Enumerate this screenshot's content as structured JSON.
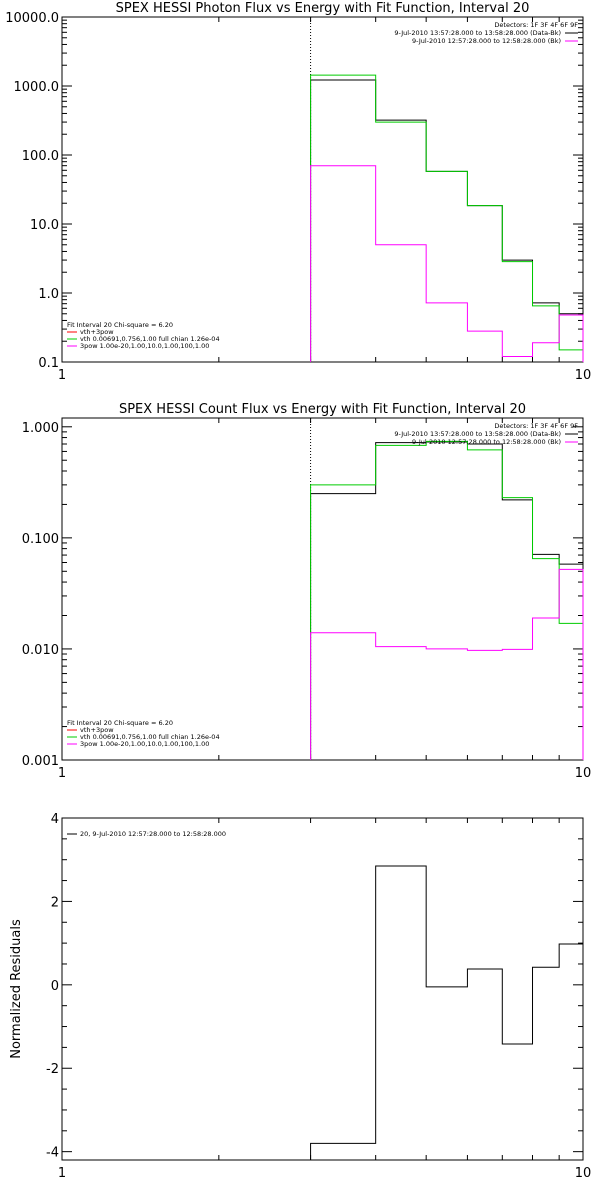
{
  "chart_data": [
    {
      "type": "line",
      "step": "histogram",
      "title": "SPEX HESSI Photon Flux vs Energy with Fit Function, Interval 20",
      "xscale": "log",
      "yscale": "log",
      "xlim": [
        1,
        10
      ],
      "ylim": [
        0.1,
        10000
      ],
      "xticks": [
        {
          "v": 1,
          "l": "1"
        },
        {
          "v": 10,
          "l": "10"
        }
      ],
      "yticks": [
        {
          "v": 0.1,
          "l": "0.1"
        },
        {
          "v": 1,
          "l": "1.0"
        },
        {
          "v": 10,
          "l": "10.0"
        },
        {
          "v": 100,
          "l": "100.0"
        },
        {
          "v": 1000,
          "l": "1000.0"
        },
        {
          "v": 10000,
          "l": "10000.0"
        }
      ],
      "vline": 3.0,
      "bin_edges": [
        3.0,
        4.0,
        5.0,
        6.0,
        7.0,
        8.0,
        9.0,
        10.0
      ],
      "series": [
        {
          "color": "#000000",
          "values": [
            1220,
            320,
            58,
            18.5,
            3.0,
            0.72,
            0.5
          ]
        },
        {
          "color": "#00cc00",
          "values": [
            1440,
            300,
            58,
            18.5,
            2.85,
            0.65,
            0.15
          ]
        },
        {
          "color": "#ff00ff",
          "values": [
            70,
            5.0,
            0.72,
            0.28,
            0.12,
            0.19,
            0.48
          ]
        }
      ],
      "detectors_text": "Detectors: 1F 3F 4F 6F 9F",
      "legend_right": [
        {
          "text": "9-Jul-2010 13:57:28.000 to 13:58:28.000 (Data-Bk)",
          "color": "#000000"
        },
        {
          "text": "9-Jul-2010 12:57:28.000 to 12:58:28.000 (Bk)",
          "color": "#ff00ff"
        }
      ],
      "legend_left": [
        {
          "text": "Fit Interval 20   Chi-square = 6.20",
          "color": null
        },
        {
          "text": "vth+3pow",
          "color": "#ff0000"
        },
        {
          "text": "vth 0.00691,0.756,1.00  full chian 1.26e-04",
          "color": "#00cc00"
        },
        {
          "text": "3pow 1.00e-20,1.00,10.0,1.00,100,1.00",
          "color": "#ff00ff"
        }
      ]
    },
    {
      "type": "line",
      "step": "histogram",
      "title": "SPEX HESSI Count Flux vs Energy with Fit Function, Interval 20",
      "xscale": "log",
      "yscale": "log",
      "xlim": [
        1,
        10
      ],
      "ylim": [
        0.001,
        1.2
      ],
      "xticks": [
        {
          "v": 1,
          "l": "1"
        },
        {
          "v": 10,
          "l": "10"
        }
      ],
      "yticks": [
        {
          "v": 0.001,
          "l": "0.001"
        },
        {
          "v": 0.01,
          "l": "0.010"
        },
        {
          "v": 0.1,
          "l": "0.100"
        },
        {
          "v": 1,
          "l": "1.000"
        }
      ],
      "vline": 3.0,
      "bin_edges": [
        3.0,
        4.0,
        5.0,
        6.0,
        7.0,
        8.0,
        9.0,
        10.0
      ],
      "series": [
        {
          "color": "#000000",
          "values": [
            0.25,
            0.72,
            0.73,
            0.7,
            0.22,
            0.071,
            0.058
          ]
        },
        {
          "color": "#00cc00",
          "values": [
            0.3,
            0.68,
            0.74,
            0.62,
            0.23,
            0.065,
            0.017
          ]
        },
        {
          "color": "#ff00ff",
          "values": [
            0.014,
            0.0105,
            0.01,
            0.0097,
            0.0099,
            0.019,
            0.052
          ]
        }
      ],
      "detectors_text": "Detectors: 1F 3F 4F 6F 9F",
      "legend_right": [
        {
          "text": "9-Jul-2010 13:57:28.000 to 13:58:28.000 (Data-Bk)",
          "color": "#000000"
        },
        {
          "text": "9-Jul-2010 12:57:28.000 to 12:58:28.000 (Bk)",
          "color": "#ff00ff"
        }
      ],
      "legend_left": [
        {
          "text": "Fit Interval 20   Chi-square = 6.20",
          "color": null
        },
        {
          "text": "vth+3pow",
          "color": "#ff0000"
        },
        {
          "text": "vth 0.00691,0.756,1.00  full chian 1.26e-04",
          "color": "#00cc00"
        },
        {
          "text": "3pow 1.00e-20,1.00,10.0,1.00,100,1.00",
          "color": "#ff00ff"
        }
      ]
    },
    {
      "type": "line",
      "step": "histogram",
      "title": "",
      "xscale": "log",
      "yscale": "linear",
      "xlim": [
        1,
        10
      ],
      "ylim": [
        -4.2,
        4
      ],
      "ylabel": "Normalized Residuals",
      "xticks": [
        {
          "v": 1,
          "l": "1"
        },
        {
          "v": 10,
          "l": "10"
        }
      ],
      "yticks": [
        {
          "v": -4,
          "l": "-4"
        },
        {
          "v": -2,
          "l": "-2"
        },
        {
          "v": 0,
          "l": "0"
        },
        {
          "v": 2,
          "l": "2"
        },
        {
          "v": 4,
          "l": "4"
        }
      ],
      "bin_edges": [
        3.0,
        4.0,
        5.0,
        6.0,
        7.0,
        8.0,
        9.0,
        10.0
      ],
      "series": [
        {
          "color": "#000000",
          "values": [
            -3.8,
            2.85,
            -0.05,
            0.38,
            -1.42,
            0.42,
            0.98
          ]
        }
      ],
      "legend_left": [
        {
          "text": "20,  9-Jul-2010 12:57:28.000 to 12:58:28.000",
          "color": "#000000"
        }
      ]
    }
  ]
}
